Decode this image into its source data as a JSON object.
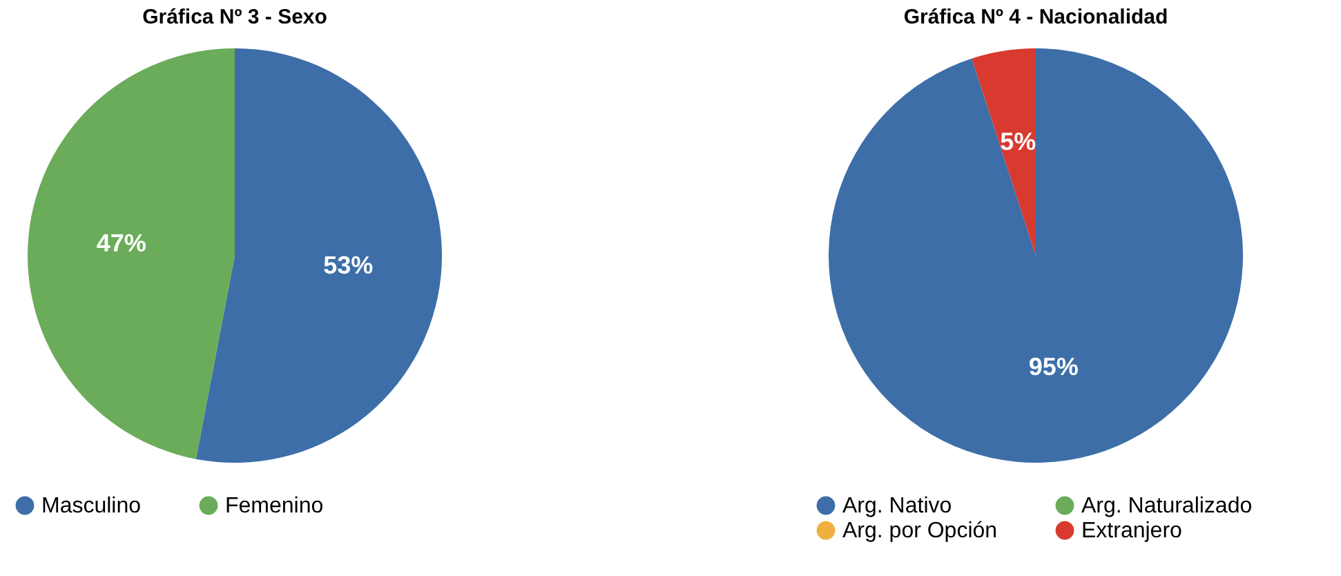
{
  "chart_data": [
    {
      "type": "pie",
      "title": "Gráfica Nº 3 - Sexo",
      "categories": [
        "Masculino",
        "Femenino"
      ],
      "values": [
        53,
        47
      ],
      "colors": [
        "#3d6ea8",
        "#6bac5a"
      ],
      "value_labels": [
        "53%",
        "47%"
      ],
      "legend": "bottom"
    },
    {
      "type": "pie",
      "title": "Gráfica Nº 4 - Nacionalidad",
      "categories": [
        "Arg. Nativo",
        "Arg. Naturalizado",
        "Arg. por Opción",
        "Extranjero"
      ],
      "values": [
        95,
        0,
        0,
        5
      ],
      "colors": [
        "#3d6ea8",
        "#6bac5a",
        "#f0b040",
        "#d83a30"
      ],
      "value_labels": [
        "95%",
        null,
        null,
        "5%"
      ],
      "legend": "bottom"
    }
  ]
}
